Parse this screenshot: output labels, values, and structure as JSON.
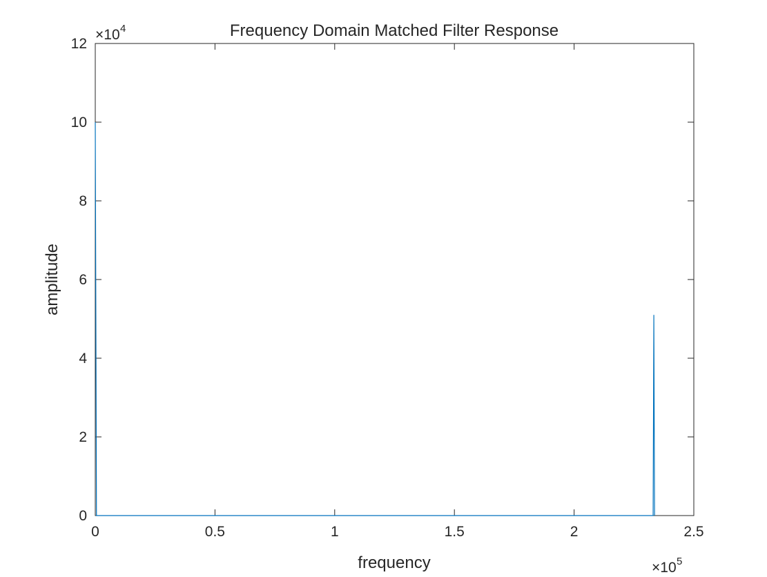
{
  "chart_data": {
    "type": "line",
    "title": "Frequency Domain Matched Filter Response",
    "xlabel": "frequency",
    "ylabel": "amplitude",
    "x_exponent": {
      "base": "×10",
      "power": "5"
    },
    "y_exponent": {
      "base": "×10",
      "power": "4"
    },
    "x": [
      0,
      500,
      1000,
      233000,
      233300,
      233600
    ],
    "values": [
      100000,
      0,
      0,
      0,
      51000,
      0
    ],
    "color": "#0072bd",
    "xlim": [
      0,
      250000
    ],
    "xticks": [
      0,
      {
        "value": 50000,
        "label": "0.5"
      },
      {
        "value": 100000,
        "label": "1"
      },
      {
        "value": 150000,
        "label": "1.5"
      },
      {
        "value": 200000,
        "label": "2"
      },
      {
        "value": 250000,
        "label": "2.5"
      }
    ],
    "ylim": [
      0,
      120000
    ],
    "yticks": [
      0,
      {
        "value": 20000,
        "label": "2"
      },
      {
        "value": 40000,
        "label": "4"
      },
      {
        "value": 60000,
        "label": "6"
      },
      {
        "value": 80000,
        "label": "8"
      },
      {
        "value": 100000,
        "label": "10"
      },
      {
        "value": 120000,
        "label": "12"
      }
    ],
    "grid": false,
    "box": true
  }
}
